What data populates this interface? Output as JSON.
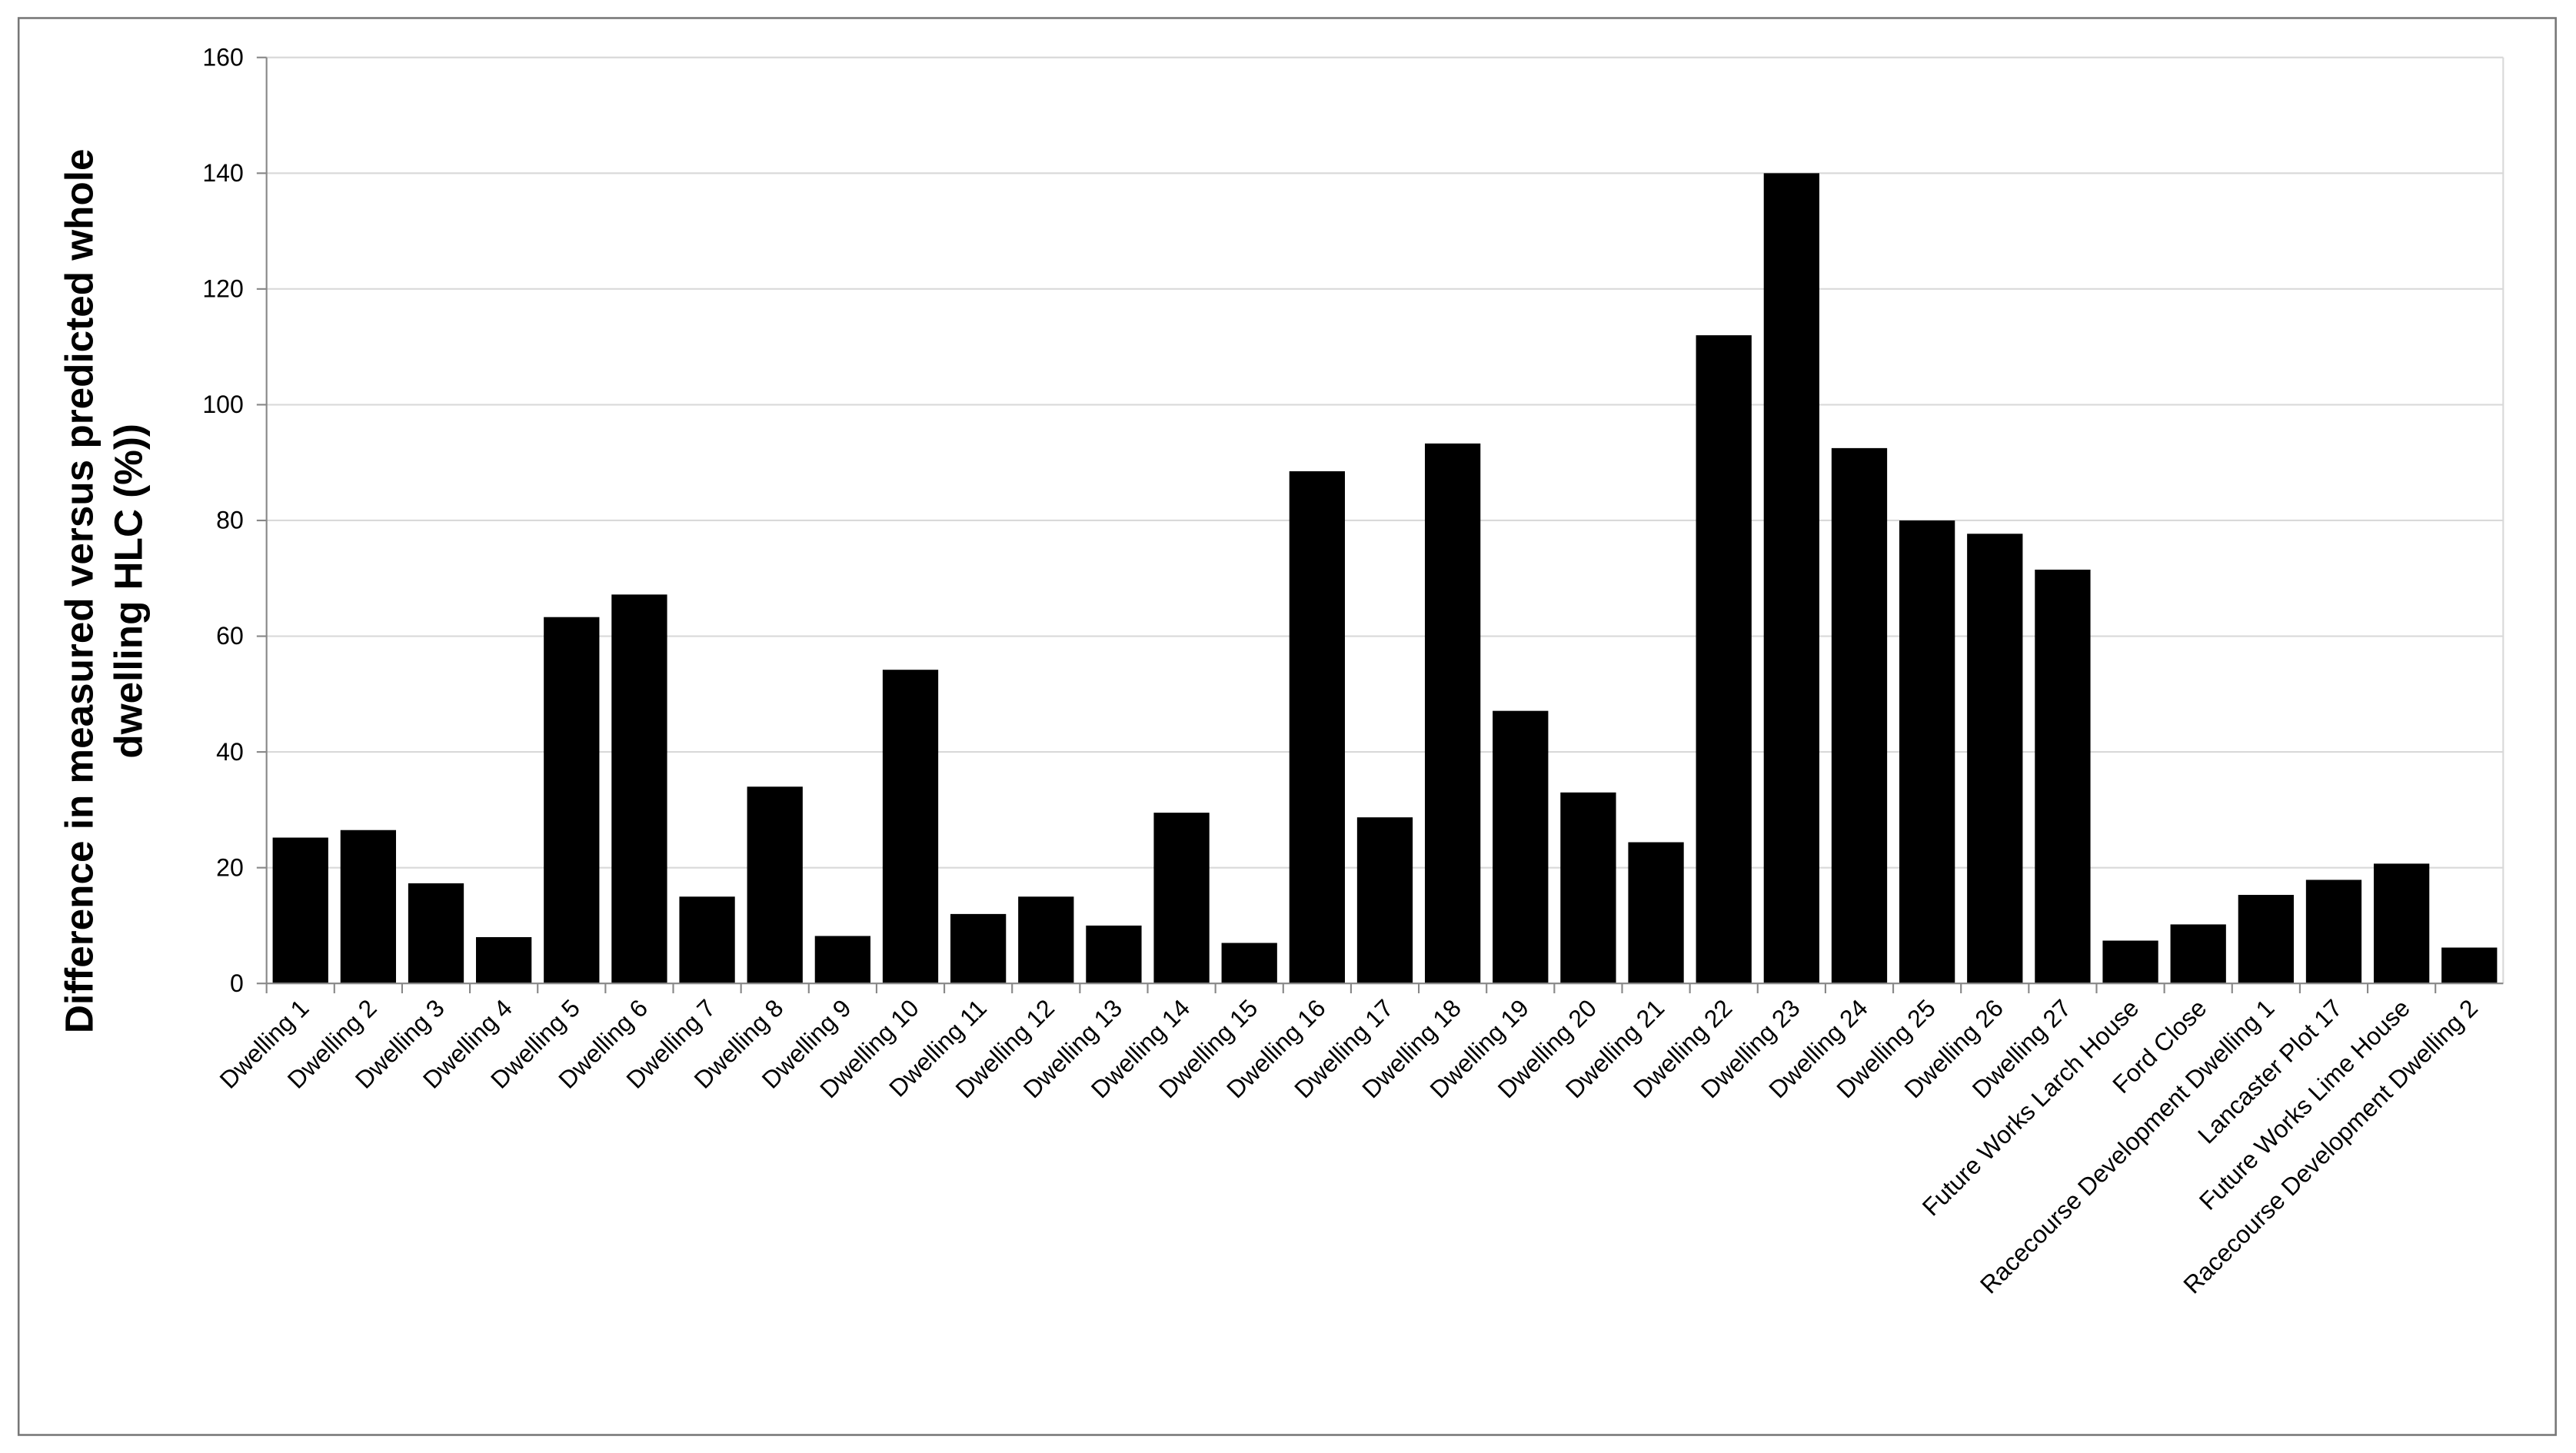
{
  "chart_data": {
    "type": "bar",
    "ylabel": [
      "Difference in measured versus predicted whole",
      "dwelling HLC (%))"
    ],
    "categories": [
      "Dwelling 1",
      "Dwelling 2",
      "Dwelling 3",
      "Dwelling 4",
      "Dwelling 5",
      "Dwelling 6",
      "Dwelling 7",
      "Dwelling 8",
      "Dwelling 9",
      "Dwelling 10",
      "Dwelling 11",
      "Dwelling 12",
      "Dwelling 13",
      "Dwelling 14",
      "Dwelling 15",
      "Dwelling 16",
      "Dwelling 17",
      "Dwelling 18",
      "Dwelling 19",
      "Dwelling 20",
      "Dwelling 21",
      "Dwelling 22",
      "Dwelling 23",
      "Dwelling 24",
      "Dwelling 25",
      "Dwelling 26",
      "Dwelling 27",
      "Future Works Larch House",
      "Ford Close",
      "Racecourse Development Dwelling 1",
      "Lancaster Plot 17",
      "Future Works Lime House",
      "Racecourse Development Dwelling 2"
    ],
    "values": [
      25.2,
      26.5,
      17.3,
      8,
      63.3,
      67.2,
      15,
      34,
      8.2,
      54.2,
      12,
      15,
      10,
      29.5,
      7,
      88.5,
      28.7,
      93.3,
      47.1,
      33,
      24.4,
      112,
      140,
      92.5,
      80,
      77.7,
      71.5,
      7.4,
      10.2,
      15.3,
      17.9,
      20.7,
      6.2
    ],
    "color": "#000000",
    "ylim": [
      0,
      160
    ],
    "yticks": [
      0,
      20,
      40,
      60,
      80,
      100,
      120,
      140,
      160
    ],
    "grid": true
  }
}
